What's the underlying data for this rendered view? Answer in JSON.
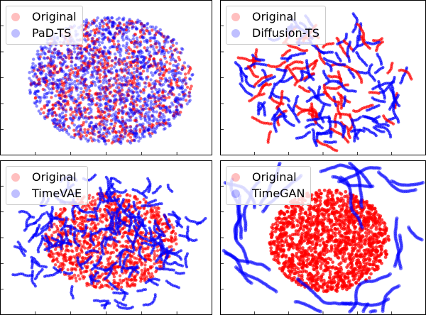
{
  "colors": {
    "original": "#ff0000",
    "generated": "#0000ff"
  },
  "chart_data": [
    {
      "type": "scatter",
      "legend": [
        "Original",
        "PaD-TS"
      ],
      "legend_position": "upper-left",
      "series": [
        {
          "name": "Original",
          "color": "#ff0000"
        },
        {
          "name": "PaD-TS",
          "color": "#0000ff"
        }
      ],
      "grid": false,
      "shape": "blob"
    },
    {
      "type": "scatter",
      "legend": [
        "Original",
        "Diffusion-TS"
      ],
      "legend_position": "upper-left",
      "series": [
        {
          "name": "Original",
          "color": "#ff0000"
        },
        {
          "name": "Diffusion-TS",
          "color": "#0000ff"
        }
      ],
      "grid": false,
      "shape": "ring"
    },
    {
      "type": "scatter",
      "legend": [
        "Original",
        "TimeVAE"
      ],
      "legend_position": "upper-left",
      "series": [
        {
          "name": "Original",
          "color": "#ff0000"
        },
        {
          "name": "TimeVAE",
          "color": "#0000ff"
        }
      ],
      "grid": false,
      "shape": "spread"
    },
    {
      "type": "scatter",
      "legend": [
        "Original",
        "TimeGAN"
      ],
      "legend_position": "upper-left",
      "series": [
        {
          "name": "Original",
          "color": "#ff0000"
        },
        {
          "name": "TimeGAN",
          "color": "#0000ff"
        }
      ],
      "grid": false,
      "shape": "separated"
    }
  ]
}
